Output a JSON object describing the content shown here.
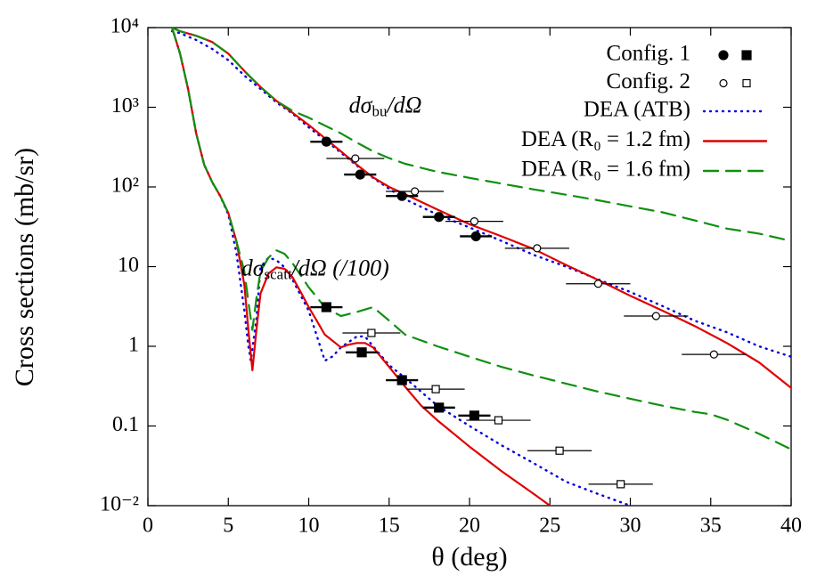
{
  "chart_data": {
    "type": "line",
    "x_label": "θ (deg)",
    "y_label": "Cross sections (mb/sr)",
    "xlim": [
      0,
      40
    ],
    "ylim": [
      0.01,
      10000
    ],
    "log_y": true,
    "xticks": [
      0,
      5,
      10,
      15,
      20,
      25,
      30,
      35,
      40
    ],
    "yticks": [
      {
        "value": 10000,
        "label": "10⁴"
      },
      {
        "value": 1000,
        "label": "10³"
      },
      {
        "value": 100,
        "label": "10²"
      },
      10,
      1,
      0.1,
      {
        "value": 0.01,
        "label": "10⁻²"
      }
    ],
    "legend": "upper right",
    "annotations": [
      {
        "x": 12.5,
        "y": 1000,
        "parts": [
          {
            "text": "dσ"
          },
          {
            "text": "bu",
            "sub": true
          },
          {
            "text": "/dΩ"
          }
        ]
      },
      {
        "x": 5.8,
        "y": 9,
        "parts": [
          {
            "text": "dσ"
          },
          {
            "text": "scatt",
            "sub": true
          },
          {
            "text": "/dΩ (/100)"
          }
        ]
      }
    ],
    "series": [
      {
        "name": "DEA (ATB)",
        "color": "#0000dd",
        "dash": "dotted",
        "curves": [
          {
            "x": [
              1.5,
              2,
              3,
              4,
              5,
              6,
              7,
              8,
              9,
              10,
              11,
              12,
              13,
              14,
              15,
              16,
              18,
              20,
              22,
              24,
              26,
              28,
              30,
              32,
              34,
              36,
              38,
              40
            ],
            "values": [
              9000,
              8500,
              7000,
              5400,
              3900,
              2500,
              1700,
              1150,
              830,
              560,
              390,
              270,
              185,
              130,
              95,
              70,
              45,
              31,
              21,
              14,
              10,
              6.9,
              4.8,
              3.2,
              2.1,
              1.5,
              1.0,
              0.74
            ]
          },
          {
            "x": [
              1.5,
              2,
              2.5,
              3,
              3.5,
              4,
              4.5,
              5,
              5.5,
              6,
              6.25,
              6.4,
              6.75,
              7,
              7.5,
              8,
              8.5,
              9,
              10,
              11,
              11.5,
              12,
              13,
              13.5,
              14,
              15,
              16,
              18,
              20,
              22,
              24,
              26,
              28,
              30,
              31
            ],
            "values": [
              10000,
              4700,
              1700,
              470,
              190,
              115,
              77,
              45,
              15,
              2.8,
              1.0,
              0.66,
              2.2,
              9.8,
              13,
              12,
              9.8,
              6.8,
              2.8,
              0.66,
              0.75,
              0.97,
              1.33,
              1.33,
              1.0,
              0.58,
              0.4,
              0.18,
              0.1,
              0.057,
              0.034,
              0.02,
              0.014,
              0.01,
              0.0085
            ]
          }
        ]
      },
      {
        "name": "DEA (R₀ = 1.2 fm)",
        "color": "#e00000",
        "dash": "solid",
        "curves": [
          {
            "x": [
              1.5,
              2,
              3,
              4,
              5,
              6,
              7,
              8,
              9,
              10,
              11,
              12,
              13,
              14,
              15,
              16,
              18,
              20,
              22,
              24,
              26,
              28,
              30,
              32,
              34,
              36,
              38,
              40
            ],
            "values": [
              10000,
              9000,
              7900,
              6600,
              4700,
              2850,
              1800,
              1200,
              850,
              600,
              410,
              280,
              190,
              132,
              100,
              81,
              52,
              34,
              24,
              16.6,
              10.5,
              6.8,
              4.3,
              2.8,
              1.8,
              1.1,
              0.63,
              0.3
            ]
          },
          {
            "x": [
              1.5,
              2,
              2.5,
              3,
              3.5,
              4,
              4.5,
              5,
              5.5,
              6,
              6.25,
              6.5,
              6.75,
              7,
              7.5,
              8,
              8.5,
              9,
              9.5,
              10,
              10.5,
              11,
              12,
              12.5,
              13,
              13.5,
              14,
              15,
              16,
              17,
              18,
              20,
              22,
              24,
              25,
              26
            ],
            "values": [
              10000,
              4700,
              1700,
              470,
              190,
              115,
              77,
              47,
              21,
              5.9,
              1.6,
              0.5,
              1.6,
              4.6,
              8.2,
              9.8,
              9.4,
              7.3,
              4.8,
              3.1,
              2.1,
              1.4,
              0.97,
              1.05,
              1.1,
              1.1,
              0.97,
              0.55,
              0.31,
              0.18,
              0.118,
              0.055,
              0.027,
              0.014,
              0.01,
              0.0073
            ]
          }
        ]
      },
      {
        "name": "DEA (R₀ = 1.6 fm)",
        "color": "#109010",
        "dash": "dashed",
        "curves": [
          {
            "x": [
              1.5,
              2,
              3,
              4,
              5,
              6,
              7,
              8,
              9,
              10,
              11,
              12,
              13,
              14,
              15,
              16,
              18,
              20,
              22,
              24,
              26,
              28,
              30,
              32,
              34,
              36,
              38,
              40
            ],
            "values": [
              10000,
              9000,
              7900,
              6600,
              4700,
              2850,
              1800,
              1200,
              900,
              740,
              590,
              470,
              360,
              280,
              230,
              195,
              155,
              130,
              110,
              93,
              80,
              68,
              57,
              48,
              38,
              30,
              26,
              21
            ]
          },
          {
            "x": [
              1.5,
              2,
              2.5,
              3,
              3.5,
              4,
              4.5,
              5,
              5.5,
              6,
              6.25,
              6.5,
              6.75,
              7,
              7.5,
              8,
              8.5,
              9,
              10,
              11,
              12,
              13,
              14,
              15,
              16,
              18,
              20,
              22,
              24,
              26,
              28,
              30,
              32,
              34,
              35,
              36,
              38,
              40
            ],
            "values": [
              10000,
              4700,
              1700,
              470,
              190,
              115,
              77,
              47,
              21,
              8.7,
              3.6,
              1.6,
              4.0,
              8.7,
              13,
              16,
              14.5,
              11,
              5.5,
              3.1,
              2.4,
              2.7,
              3.1,
              2.1,
              1.4,
              1.0,
              0.74,
              0.55,
              0.43,
              0.34,
              0.27,
              0.22,
              0.18,
              0.15,
              0.14,
              0.12,
              0.08,
              0.051
            ]
          }
        ]
      }
    ],
    "points": [
      {
        "name": "Config. 1",
        "filled": true,
        "sets": [
          {
            "marker": "circle",
            "x": [
              11.1,
              13.2,
              15.8,
              18.1,
              20.4
            ],
            "values": [
              370,
              143,
              77,
              42,
              24
            ],
            "xerr": [
              1.0,
              1.0,
              1.0,
              1.0,
              1.0
            ]
          },
          {
            "marker": "square",
            "x": [
              11.1,
              13.3,
              15.8,
              18.1,
              20.3
            ],
            "values": [
              3.1,
              0.84,
              0.376,
              0.17,
              0.135
            ],
            "xerr": [
              1.0,
              1.0,
              1.0,
              1.0,
              1.0
            ]
          }
        ]
      },
      {
        "name": "Config. 2",
        "filled": false,
        "sets": [
          {
            "marker": "circle",
            "x": [
              12.9,
              16.6,
              20.3,
              24.2,
              28.0,
              31.6,
              35.2
            ],
            "values": [
              228,
              88,
              37,
              17,
              6.1,
              2.4,
              0.79
            ],
            "xerr": [
              1.8,
              1.8,
              1.8,
              2.0,
              2.0,
              2.0,
              2.0
            ]
          },
          {
            "marker": "square",
            "x": [
              13.9,
              17.9,
              21.8,
              25.6,
              29.4
            ],
            "values": [
              1.47,
              0.29,
              0.118,
              0.049,
              0.0186
            ],
            "xerr": [
              1.8,
              1.8,
              2.0,
              2.0,
              2.0
            ]
          }
        ]
      }
    ]
  }
}
